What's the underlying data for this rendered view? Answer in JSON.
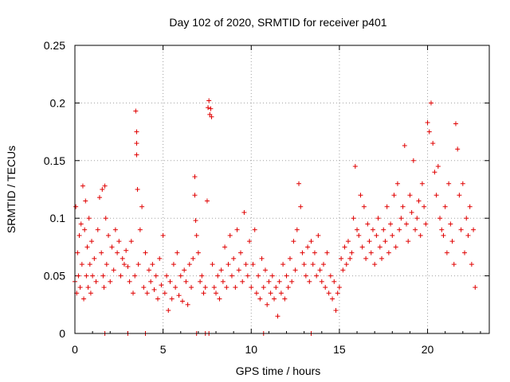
{
  "chart_data": {
    "type": "scatter",
    "title": "Day 102 of 2020, SRMTID for receiver p401",
    "xlabel": "GPS time / hours",
    "ylabel": "SRMTID / TECUs",
    "xlim": [
      0,
      23.5
    ],
    "ylim": [
      0,
      0.25
    ],
    "xticks": [
      0,
      5,
      10,
      15,
      20
    ],
    "xtick_labels": [
      "0",
      "5",
      "10",
      "15",
      "20"
    ],
    "yticks": [
      0,
      0.05,
      0.1,
      0.15,
      0.2,
      0.25
    ],
    "ytick_labels": [
      "0",
      "0.05",
      "0.1",
      "0.15",
      "0.2",
      "0.25"
    ],
    "grid": true,
    "marker": "+",
    "color": "#e00000",
    "series": [
      {
        "name": "SRMTID",
        "x": [
          0.0,
          0.05,
          0.1,
          0.15,
          0.2,
          0.25,
          0.3,
          0.35,
          0.4,
          0.45,
          0.5,
          0.55,
          0.6,
          0.65,
          0.7,
          0.75,
          0.8,
          0.85,
          0.9,
          0.95,
          1.0,
          1.1,
          1.2,
          1.3,
          1.4,
          1.5,
          1.55,
          1.6,
          1.65,
          1.7,
          1.75,
          1.8,
          1.9,
          2.0,
          2.1,
          2.2,
          2.3,
          2.4,
          2.5,
          2.6,
          2.7,
          2.8,
          2.9,
          3.0,
          3.1,
          3.2,
          3.3,
          3.4,
          3.45,
          3.5,
          3.5,
          3.5,
          3.55,
          3.6,
          3.7,
          3.8,
          3.9,
          4.0,
          4.1,
          4.2,
          4.3,
          4.4,
          4.5,
          4.6,
          4.7,
          4.8,
          4.9,
          5.0,
          5.1,
          5.2,
          5.3,
          5.4,
          5.5,
          5.6,
          5.7,
          5.8,
          5.9,
          6.0,
          6.1,
          6.2,
          6.3,
          6.4,
          6.5,
          6.6,
          6.7,
          6.8,
          6.8,
          6.85,
          6.9,
          7.0,
          7.1,
          7.2,
          7.3,
          7.4,
          7.5,
          7.55,
          7.6,
          7.65,
          7.7,
          7.75,
          7.8,
          7.9,
          8.0,
          8.1,
          8.2,
          8.3,
          8.4,
          8.5,
          8.6,
          8.7,
          8.8,
          8.9,
          9.0,
          9.1,
          9.2,
          9.3,
          9.4,
          9.5,
          9.6,
          9.7,
          9.8,
          9.9,
          10.0,
          10.1,
          10.2,
          10.3,
          10.4,
          10.5,
          10.6,
          10.7,
          10.8,
          10.9,
          11.0,
          11.1,
          11.2,
          11.3,
          11.4,
          11.5,
          11.6,
          11.7,
          11.8,
          11.9,
          12.0,
          12.1,
          12.2,
          12.3,
          12.4,
          12.5,
          12.6,
          12.7,
          12.8,
          12.9,
          13.0,
          13.1,
          13.2,
          13.3,
          13.4,
          13.5,
          13.6,
          13.7,
          13.8,
          13.9,
          14.0,
          14.1,
          14.2,
          14.3,
          14.4,
          14.5,
          14.6,
          14.7,
          14.8,
          14.9,
          15.0,
          15.1,
          15.2,
          15.3,
          15.4,
          15.5,
          15.6,
          15.7,
          15.8,
          15.9,
          16.0,
          16.1,
          16.2,
          16.3,
          16.4,
          16.5,
          16.6,
          16.7,
          16.8,
          16.9,
          17.0,
          17.1,
          17.2,
          17.3,
          17.4,
          17.5,
          17.6,
          17.7,
          17.8,
          17.9,
          18.0,
          18.1,
          18.2,
          18.3,
          18.4,
          18.5,
          18.6,
          18.7,
          18.8,
          18.9,
          19.0,
          19.1,
          19.2,
          19.3,
          19.4,
          19.5,
          19.6,
          19.7,
          19.8,
          19.9,
          20.0,
          20.1,
          20.2,
          20.3,
          20.4,
          20.5,
          20.6,
          20.7,
          20.8,
          20.9,
          21.0,
          21.1,
          21.2,
          21.3,
          21.4,
          21.5,
          21.6,
          21.7,
          21.8,
          21.9,
          22.0,
          22.1,
          22.2,
          22.3,
          22.4,
          22.5,
          22.6,
          22.7,
          1.7,
          3.0,
          4.0,
          6.9,
          7.4,
          7.6,
          10.7,
          13.4
        ],
        "y": [
          0.045,
          0.11,
          0.035,
          0.07,
          0.05,
          0.085,
          0.04,
          0.095,
          0.06,
          0.128,
          0.03,
          0.09,
          0.115,
          0.05,
          0.075,
          0.04,
          0.1,
          0.06,
          0.035,
          0.08,
          0.05,
          0.065,
          0.045,
          0.09,
          0.118,
          0.07,
          0.125,
          0.05,
          0.04,
          0.128,
          0.1,
          0.06,
          0.085,
          0.045,
          0.075,
          0.055,
          0.09,
          0.07,
          0.08,
          0.05,
          0.065,
          0.06,
          0.072,
          0.058,
          0.045,
          0.08,
          0.035,
          0.05,
          0.193,
          0.175,
          0.165,
          0.155,
          0.125,
          0.06,
          0.09,
          0.11,
          0.04,
          0.07,
          0.035,
          0.055,
          0.045,
          0.06,
          0.038,
          0.05,
          0.03,
          0.065,
          0.042,
          0.085,
          0.035,
          0.05,
          0.02,
          0.045,
          0.03,
          0.06,
          0.04,
          0.07,
          0.033,
          0.05,
          0.028,
          0.055,
          0.045,
          0.025,
          0.06,
          0.04,
          0.065,
          0.136,
          0.12,
          0.098,
          0.085,
          0.07,
          0.045,
          0.05,
          0.035,
          0.04,
          0.115,
          0.196,
          0.202,
          0.19,
          0.195,
          0.188,
          0.06,
          0.04,
          0.035,
          0.05,
          0.03,
          0.055,
          0.045,
          0.075,
          0.04,
          0.06,
          0.085,
          0.05,
          0.065,
          0.04,
          0.09,
          0.055,
          0.07,
          0.045,
          0.105,
          0.06,
          0.05,
          0.08,
          0.04,
          0.06,
          0.09,
          0.035,
          0.05,
          0.03,
          0.065,
          0.04,
          0.055,
          0.025,
          0.045,
          0.035,
          0.05,
          0.03,
          0.04,
          0.015,
          0.045,
          0.035,
          0.06,
          0.03,
          0.05,
          0.04,
          0.065,
          0.045,
          0.08,
          0.055,
          0.09,
          0.13,
          0.11,
          0.07,
          0.06,
          0.05,
          0.075,
          0.045,
          0.08,
          0.06,
          0.07,
          0.05,
          0.085,
          0.055,
          0.045,
          0.06,
          0.04,
          0.07,
          0.035,
          0.05,
          0.03,
          0.045,
          0.02,
          0.035,
          0.04,
          0.065,
          0.055,
          0.075,
          0.06,
          0.08,
          0.065,
          0.07,
          0.1,
          0.145,
          0.09,
          0.085,
          0.12,
          0.075,
          0.11,
          0.065,
          0.095,
          0.08,
          0.07,
          0.09,
          0.06,
          0.085,
          0.1,
          0.075,
          0.065,
          0.09,
          0.08,
          0.11,
          0.07,
          0.095,
          0.085,
          0.12,
          0.075,
          0.13,
          0.09,
          0.1,
          0.11,
          0.163,
          0.095,
          0.08,
          0.12,
          0.105,
          0.15,
          0.09,
          0.1,
          0.115,
          0.085,
          0.13,
          0.11,
          0.095,
          0.183,
          0.175,
          0.2,
          0.165,
          0.14,
          0.12,
          0.145,
          0.1,
          0.09,
          0.085,
          0.11,
          0.07,
          0.13,
          0.095,
          0.08,
          0.06,
          0.182,
          0.16,
          0.12,
          0.09,
          0.13,
          0.07,
          0.1,
          0.085,
          0.11,
          0.06,
          0.09,
          0.04,
          0.0,
          0.0,
          0.0,
          0.0,
          0.0,
          0.0,
          0.0,
          0.0
        ]
      }
    ]
  }
}
